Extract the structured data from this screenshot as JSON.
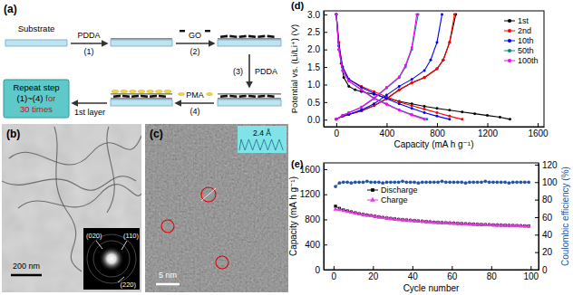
{
  "schematic": {
    "panel_label": "(a)",
    "substrate": "Substrate",
    "steps": [
      {
        "number": "(1)",
        "reagent": "PDDA"
      },
      {
        "number": "(2)",
        "reagent": "GO"
      },
      {
        "number": "(3)",
        "reagent": "PDDA"
      },
      {
        "number": "(4)",
        "reagent": "PMA"
      }
    ],
    "result": "1st layer",
    "repeat_box": [
      "Repeat step",
      "(1)~(4)",
      "for",
      "30 times"
    ]
  },
  "tem_image": {
    "panel_label": "(b)",
    "scale_bar": "200 nm",
    "inset_labels": [
      "(020)",
      "(110)",
      "(220)"
    ]
  },
  "hrtem_image": {
    "panel_label": "(c)",
    "scale_bar": "5 nm",
    "inset_label": "2.4 Å"
  },
  "chart_data": [
    {
      "type": "line",
      "title": "(d)",
      "x_label": "Capacity (mA h g⁻¹)",
      "y_label": "Potential vs. (Li/Li⁺) (V)",
      "xlim": [
        -100,
        1650
      ],
      "xticks": [
        0,
        400,
        800,
        1200,
        1600
      ],
      "ylim": [
        -0.2,
        3.1
      ],
      "yticks": [
        {
          "value": 0,
          "label": "0.0"
        },
        0.5,
        {
          "value": 1,
          "label": "1.0"
        },
        1.5,
        {
          "value": 2,
          "label": "2.0"
        },
        2.5,
        {
          "value": 3,
          "label": "3.0"
        }
      ],
      "legend": "upper right",
      "series": [
        {
          "name": "1st",
          "color": "#000000",
          "marker": "circle",
          "x": [
            0,
            20,
            40,
            60,
            100,
            150,
            200,
            300,
            400,
            500,
            600,
            700,
            800,
            900,
            1000,
            1100,
            1200,
            1300,
            1380,
            null,
            0,
            50,
            100,
            200,
            300,
            400,
            500,
            600,
            700,
            800,
            850,
            900,
            950
          ],
          "values": [
            3.0,
            2.2,
            1.6,
            1.2,
            0.95,
            0.85,
            0.8,
            0.72,
            0.62,
            0.52,
            0.45,
            0.38,
            0.32,
            0.27,
            0.22,
            0.17,
            0.12,
            0.07,
            0.01,
            null,
            0.01,
            0.1,
            0.15,
            0.25,
            0.4,
            0.6,
            0.85,
            1.05,
            1.2,
            1.45,
            1.7,
            2.2,
            3.0
          ]
        },
        {
          "name": "2nd",
          "color": "#ff0000",
          "marker": "circle",
          "x": [
            0,
            20,
            50,
            100,
            200,
            300,
            400,
            500,
            600,
            700,
            800,
            900,
            1000,
            null,
            0,
            50,
            100,
            200,
            300,
            400,
            500,
            600,
            700,
            800,
            850,
            900,
            940
          ],
          "values": [
            3.0,
            2.2,
            1.5,
            1.15,
            0.95,
            0.8,
            0.65,
            0.5,
            0.4,
            0.3,
            0.2,
            0.1,
            0.01,
            null,
            0.01,
            0.1,
            0.15,
            0.25,
            0.4,
            0.6,
            0.85,
            1.05,
            1.2,
            1.45,
            1.7,
            2.2,
            3.0
          ]
        },
        {
          "name": "10th",
          "color": "#0000ff",
          "marker": "circle",
          "x": [
            0,
            20,
            50,
            100,
            200,
            300,
            400,
            500,
            600,
            700,
            800,
            900,
            null,
            0,
            50,
            100,
            200,
            300,
            400,
            500,
            600,
            700,
            750,
            800,
            840
          ],
          "values": [
            3.0,
            2.1,
            1.5,
            1.15,
            0.92,
            0.75,
            0.6,
            0.45,
            0.32,
            0.2,
            0.1,
            0.01,
            null,
            0.01,
            0.1,
            0.15,
            0.28,
            0.45,
            0.7,
            0.95,
            1.15,
            1.4,
            1.7,
            2.2,
            3.0
          ]
        },
        {
          "name": "50th",
          "color": "#008b8b",
          "marker": "circle",
          "x": [
            0,
            20,
            50,
            100,
            200,
            300,
            400,
            500,
            600,
            720,
            null,
            0,
            50,
            100,
            200,
            300,
            400,
            500,
            550,
            600,
            650
          ],
          "values": [
            3.0,
            2.0,
            1.4,
            1.1,
            0.85,
            0.62,
            0.45,
            0.28,
            0.15,
            0.01,
            null,
            0.01,
            0.12,
            0.2,
            0.35,
            0.6,
            0.9,
            1.2,
            1.5,
            2.0,
            3.0
          ]
        },
        {
          "name": "100th",
          "color": "#ff00ff",
          "marker": "circle",
          "x": [
            0,
            20,
            50,
            100,
            200,
            300,
            400,
            500,
            600,
            700,
            null,
            0,
            50,
            100,
            200,
            300,
            400,
            500,
            550,
            600,
            640
          ],
          "values": [
            3.0,
            2.0,
            1.4,
            1.1,
            0.85,
            0.6,
            0.43,
            0.27,
            0.13,
            0.01,
            null,
            0.01,
            0.12,
            0.2,
            0.36,
            0.62,
            0.92,
            1.22,
            1.55,
            2.05,
            3.0
          ]
        }
      ]
    },
    {
      "type": "line",
      "title": "(e)",
      "x_label": "Cycle number",
      "y_label": "Capacity (mA h g⁻¹)",
      "y2_label": "Coulombic efficiency (%)",
      "xlim": [
        -5,
        104
      ],
      "xticks": [
        0,
        20,
        40,
        60,
        80,
        100
      ],
      "ylim": [
        0,
        1700
      ],
      "yticks": [
        0,
        400,
        800,
        1200,
        1600
      ],
      "y2lim": [
        0,
        122
      ],
      "y2ticks": [
        0,
        20,
        40,
        60,
        80,
        100,
        120
      ],
      "legend": "upper left",
      "x": [
        1,
        3,
        5,
        7,
        9,
        11,
        13,
        15,
        17,
        19,
        21,
        23,
        25,
        27,
        29,
        31,
        33,
        35,
        37,
        39,
        41,
        43,
        45,
        47,
        49,
        51,
        53,
        55,
        57,
        59,
        61,
        63,
        65,
        67,
        69,
        71,
        73,
        75,
        77,
        79,
        81,
        83,
        85,
        87,
        89,
        91,
        93,
        95,
        97,
        99
      ],
      "series": [
        {
          "name": "Discharge",
          "color": "#000000",
          "marker": "square",
          "values": [
            1010,
            975,
            950,
            935,
            920,
            905,
            890,
            880,
            870,
            860,
            850,
            840,
            830,
            822,
            815,
            808,
            800,
            795,
            790,
            785,
            780,
            775,
            770,
            765,
            760,
            755,
            752,
            748,
            745,
            742,
            740,
            736,
            733,
            730,
            727,
            724,
            721,
            718,
            716,
            714,
            712,
            710,
            708,
            706,
            704,
            702,
            700,
            698,
            696,
            694
          ]
        },
        {
          "name": "Charge",
          "color": "#e03ee0",
          "marker": "triangle",
          "values": [
            960,
            955,
            938,
            925,
            912,
            898,
            884,
            875,
            865,
            855,
            846,
            836,
            826,
            818,
            811,
            804,
            797,
            792,
            787,
            782,
            777,
            772,
            767,
            762,
            757,
            752,
            749,
            745,
            742,
            739,
            737,
            733,
            730,
            727,
            724,
            721,
            718,
            715,
            713,
            711,
            709,
            707,
            705,
            703,
            701,
            699,
            697,
            695,
            693,
            691
          ]
        },
        {
          "color": "#2255aa",
          "marker": "circle",
          "axis": "y2",
          "values": [
            95,
            99,
            100,
            100,
            99,
            100,
            100,
            100,
            101,
            100,
            100,
            100,
            99,
            100,
            100,
            100,
            100,
            101,
            100,
            100,
            100,
            99,
            100,
            100,
            100,
            100,
            100,
            101,
            100,
            100,
            100,
            100,
            100,
            99,
            100,
            100,
            100,
            100,
            101,
            100,
            100,
            100,
            100,
            100,
            99,
            100,
            100,
            100,
            100,
            100
          ]
        }
      ]
    }
  ]
}
